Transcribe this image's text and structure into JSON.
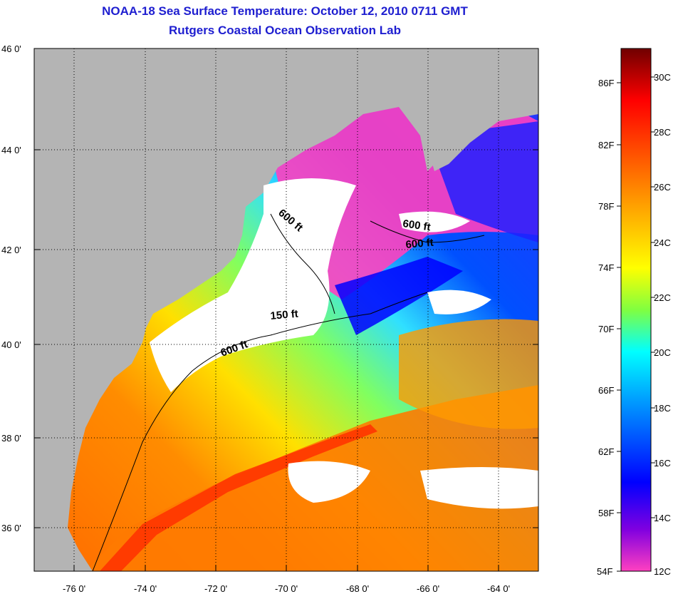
{
  "title": {
    "line1": "NOAA-18 Sea Surface Temperature:  October 12, 2010 0711 GMT",
    "line2": "Rutgers Coastal Ocean Observation Lab"
  },
  "map": {
    "lat_labels": [
      "46 0'",
      "44 0'",
      "42 0'",
      "40 0'",
      "38 0'",
      "36 0'"
    ],
    "lon_labels": [
      "-76 0'",
      "-74 0'",
      "-72 0'",
      "-70 0'",
      "-68 0'",
      "-66 0'",
      "-64 0'"
    ],
    "contour_labels": [
      "600 ft",
      "600 ft",
      "600 ft",
      "150 ft",
      "600 ft"
    ],
    "colors": {
      "land": "#b4b4b4",
      "cloud": "#ffffff",
      "grid": "#000000"
    }
  },
  "colorbar": {
    "fahrenheit_labels": [
      "86F",
      "82F",
      "78F",
      "74F",
      "70F",
      "66F",
      "62F",
      "58F",
      "54F"
    ],
    "celsius_labels": [
      "30C",
      "28C",
      "26C",
      "24C",
      "22C",
      "20C",
      "18C",
      "16C",
      "14C",
      "12C"
    ],
    "colors": [
      "#ff40c0",
      "#8000e0",
      "#0000ff",
      "#00a0ff",
      "#00ffff",
      "#80ff40",
      "#ffff00",
      "#ffa000",
      "#ff5000",
      "#ff0000",
      "#700000"
    ]
  }
}
